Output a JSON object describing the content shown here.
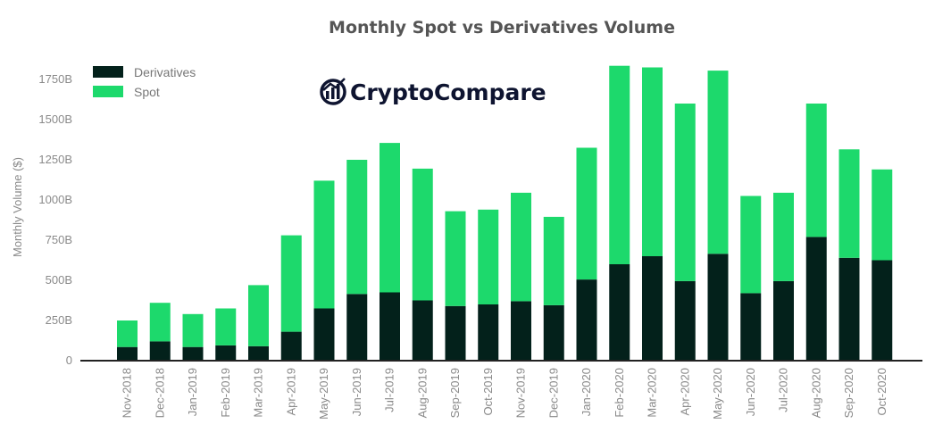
{
  "colors": {
    "derivatives": "#03211b",
    "spot": "#1dd96c",
    "axis": "#222222",
    "text": "#8a8a8a"
  },
  "logo": {
    "text": "CryptoCompare",
    "icon": "cryptocompare-logo-icon"
  },
  "chart_data": {
    "type": "bar",
    "stacked": true,
    "title": "Monthly Spot vs Derivatives Volume",
    "xlabel": "",
    "ylabel": "Monthly Volume ($)",
    "ylim": [
      0,
      1750
    ],
    "yticks": [
      0,
      250,
      500,
      750,
      1000,
      1250,
      1500,
      1750
    ],
    "ytick_labels": [
      "0",
      "250B",
      "500B",
      "750B",
      "1000B",
      "1250B",
      "1500B",
      "1750B"
    ],
    "legend_position": "top-left",
    "grid": false,
    "categories": [
      "Nov-2018",
      "Dec-2018",
      "Jan-2019",
      "Feb-2019",
      "Mar-2019",
      "Apr-2019",
      "May-2019",
      "Jun-2019",
      "Jul-2019",
      "Aug-2019",
      "Sep-2019",
      "Oct-2019",
      "Nov-2019",
      "Dec-2019",
      "Jan-2020",
      "Feb-2020",
      "Mar-2020",
      "Apr-2020",
      "May-2020",
      "Jun-2020",
      "Jul-2020",
      "Aug-2020",
      "Sep-2020",
      "Oct-2020"
    ],
    "series": [
      {
        "name": "Derivatives",
        "values": [
          85,
          120,
          85,
          95,
          90,
          180,
          325,
          415,
          425,
          375,
          340,
          350,
          370,
          345,
          505,
          600,
          650,
          495,
          665,
          420,
          495,
          770,
          640,
          625
        ]
      },
      {
        "name": "Spot",
        "values": [
          165,
          240,
          205,
          230,
          380,
          600,
          795,
          835,
          930,
          820,
          590,
          590,
          675,
          550,
          820,
          1235,
          1175,
          1105,
          1140,
          605,
          550,
          830,
          675,
          565
        ]
      }
    ]
  }
}
